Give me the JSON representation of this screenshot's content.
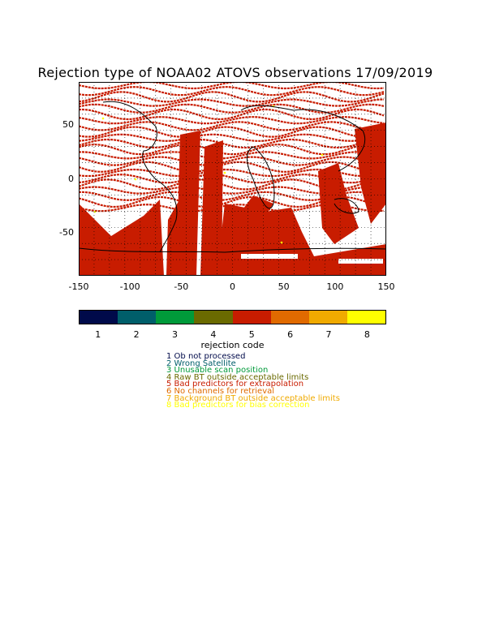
{
  "title": "Rejection type of NOAA02 ATOVS observations 17/09/2019",
  "map": {
    "xlim": [
      -150,
      150
    ],
    "ylim": [
      -90,
      90
    ],
    "x_ticks": [
      "-150",
      "-100",
      "-50",
      "0",
      "50",
      "100",
      "150"
    ],
    "y_ticks": [
      "50",
      "0",
      "-50"
    ],
    "x_tick_values": [
      -150,
      -100,
      -50,
      0,
      50,
      100,
      150
    ],
    "y_tick_values": [
      50,
      0,
      -50
    ],
    "background_color": "#ffffff",
    "dominant_code": 5,
    "dominant_color": "#c81c00"
  },
  "colorbar": {
    "title": "rejection code",
    "labels": [
      "1",
      "2",
      "3",
      "4",
      "5",
      "6",
      "7",
      "8"
    ],
    "colors": [
      "#000a4a",
      "#005e6a",
      "#009a3a",
      "#6a6a00",
      "#c81c00",
      "#e06a00",
      "#f0aa00",
      "#ffff00"
    ]
  },
  "legend": [
    {
      "text": "1 Ob not processed",
      "color": "#000a4a"
    },
    {
      "text": "2 Wrong Satellite",
      "color": "#005e6a"
    },
    {
      "text": "3 Unusable scan position",
      "color": "#009a3a"
    },
    {
      "text": "4 Raw BT outside acceptable limits",
      "color": "#6a6a00"
    },
    {
      "text": "5 Bad predictors for extrapolation",
      "color": "#c81c00"
    },
    {
      "text": "6 No channels for retrieval",
      "color": "#e06a00"
    },
    {
      "text": "7 Background BT outside acceptable limits",
      "color": "#f0aa00"
    },
    {
      "text": "8 Bad predictors for bias correction",
      "color": "#ffff00"
    }
  ]
}
